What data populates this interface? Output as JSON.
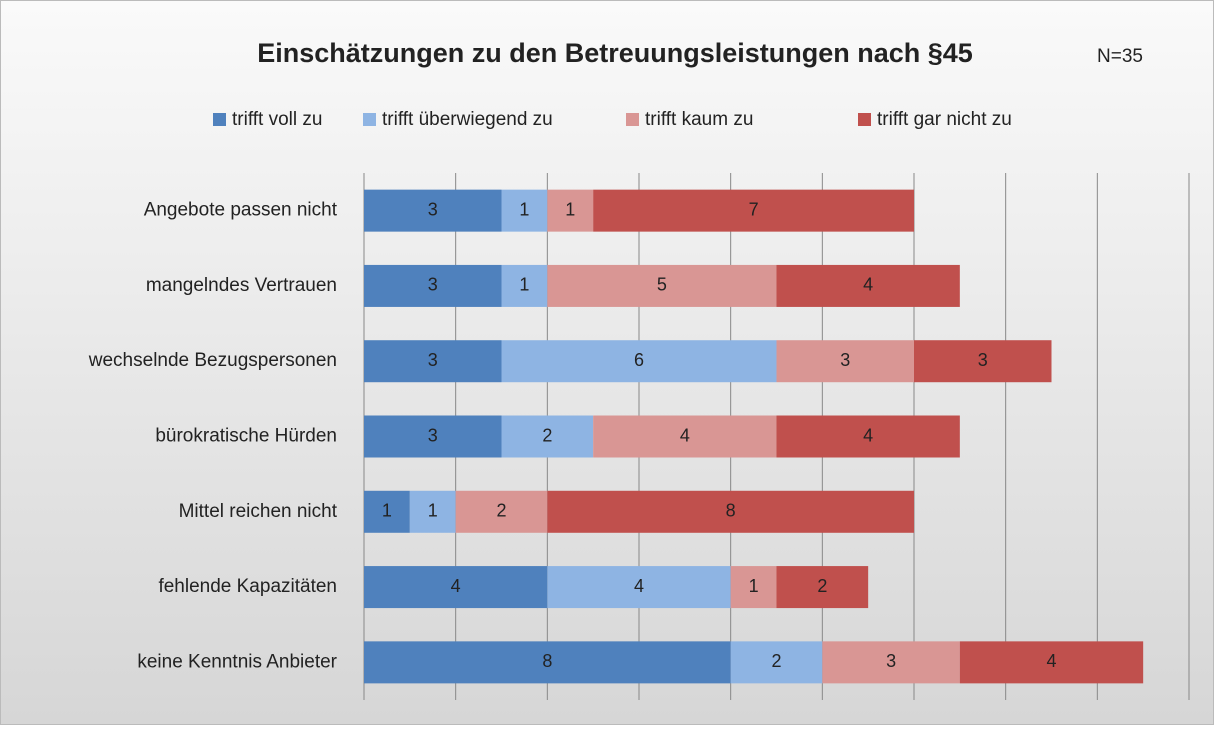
{
  "chart_data": {
    "type": "stacked-barh",
    "title": "Einschätzungen zu den Betreuungsleistungen nach §45",
    "annotation": "N=35",
    "categories": [
      "Angebote passen nicht",
      "mangelndes Vertrauen",
      "wechselnde Bezugspersonen",
      "bürokratische Hürden",
      "Mittel reichen nicht",
      "fehlende Kapazitäten",
      "keine Kenntnis Anbieter"
    ],
    "series": [
      {
        "name": "trifft voll zu",
        "color": "#4f81bd",
        "values": [
          3,
          3,
          3,
          3,
          1,
          4,
          8
        ]
      },
      {
        "name": "trifft überwiegend zu",
        "color": "#8eb4e3",
        "values": [
          1,
          1,
          6,
          2,
          1,
          4,
          2
        ]
      },
      {
        "name": "trifft kaum zu",
        "color": "#d99694",
        "values": [
          1,
          5,
          3,
          4,
          2,
          1,
          3
        ]
      },
      {
        "name": "trifft gar nicht zu",
        "color": "#c0504d",
        "values": [
          7,
          4,
          3,
          4,
          8,
          2,
          4
        ]
      }
    ],
    "xlim": [
      0,
      18
    ],
    "xticks": [
      0,
      2,
      4,
      6,
      8,
      10,
      12,
      14,
      16,
      18
    ],
    "grid": true
  }
}
